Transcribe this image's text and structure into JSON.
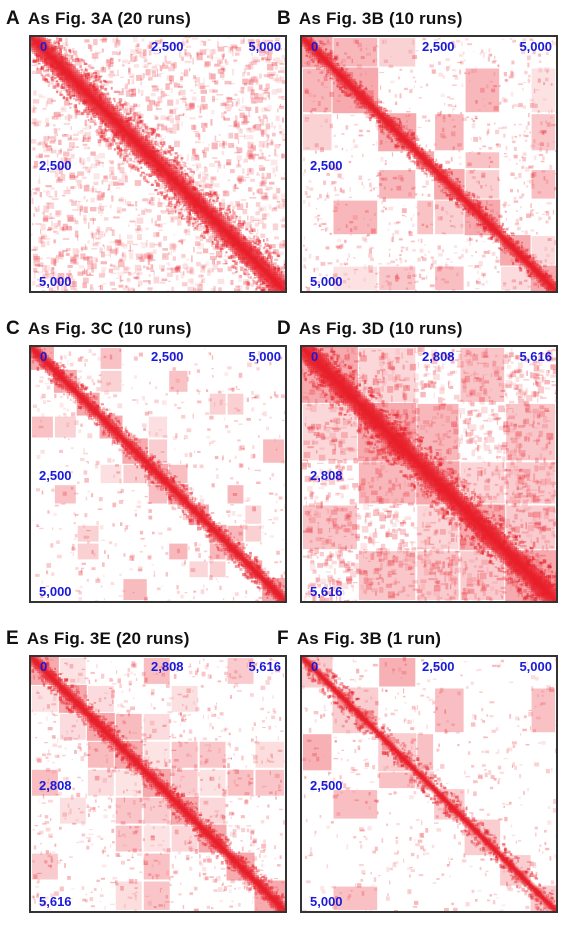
{
  "chart_data": [
    {
      "type": "heatmap",
      "panel": "A",
      "title": "As Fig. 3A (20 runs)",
      "ticks": [
        "0",
        "2,500",
        "5,000"
      ],
      "n": 5000,
      "blocks": [],
      "band": "wide",
      "background": "heavy",
      "color": "#e8202a"
    },
    {
      "type": "heatmap",
      "panel": "B",
      "title": "As Fig. 3B (10 runs)",
      "ticks": [
        "0",
        "2,500",
        "5,000"
      ],
      "n": 5000,
      "blocks": [
        0,
        0.12,
        0.3,
        0.45,
        0.52,
        0.64,
        0.78,
        0.9,
        1
      ],
      "band": "narrow",
      "background": "blocky",
      "color": "#e8202a"
    },
    {
      "type": "heatmap",
      "panel": "C",
      "title": "As Fig. 3C (10 runs)",
      "ticks": [
        "0",
        "2,500",
        "5,000"
      ],
      "n": 5000,
      "blocks": [
        0,
        0.09,
        0.18,
        0.27,
        0.36,
        0.46,
        0.54,
        0.62,
        0.7,
        0.77,
        0.84,
        0.91,
        1
      ],
      "band": "narrow",
      "background": "sparse",
      "color": "#e8202a"
    },
    {
      "type": "heatmap",
      "panel": "D",
      "title": "As Fig. 3D (10 runs)",
      "ticks": [
        "0",
        "2,808",
        "5,616"
      ],
      "n": 5616,
      "blocks": [
        0,
        0.22,
        0.45,
        0.62,
        0.8,
        1
      ],
      "band": "wide",
      "background": "heavy",
      "color": "#e8202a"
    },
    {
      "type": "heatmap",
      "panel": "E",
      "title": "As Fig. 3E (20 runs)",
      "ticks": [
        "0",
        "2,808",
        "5,616"
      ],
      "n": 5616,
      "blocks": [
        0,
        0.11,
        0.22,
        0.33,
        0.44,
        0.55,
        0.66,
        0.77,
        0.88,
        1
      ],
      "band": "narrow",
      "background": "blocky",
      "color": "#e8202a"
    },
    {
      "type": "heatmap",
      "panel": "F",
      "title": "As Fig. 3B (1 run)",
      "ticks": [
        "0",
        "2,500",
        "5,000"
      ],
      "n": 5000,
      "blocks": [
        0,
        0.12,
        0.3,
        0.45,
        0.52,
        0.64,
        0.78,
        0.9,
        1
      ],
      "band": "thin",
      "background": "sparse",
      "color": "#e8202a"
    }
  ]
}
